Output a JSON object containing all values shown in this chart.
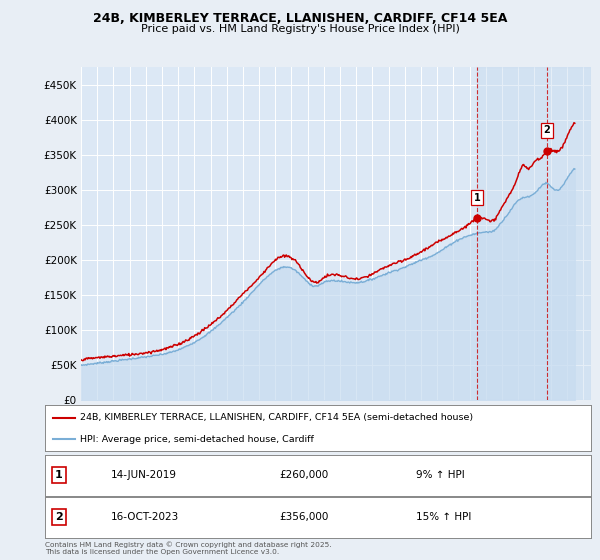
{
  "title_line1": "24B, KIMBERLEY TERRACE, LLANISHEN, CARDIFF, CF14 5EA",
  "title_line2": "Price paid vs. HM Land Registry's House Price Index (HPI)",
  "bg_color": "#e8eef5",
  "plot_bg_color": "#dce8f5",
  "grid_color": "#ffffff",
  "red_color": "#cc0000",
  "blue_color": "#7aaed6",
  "shade_color": "#c8dcf0",
  "marker1_date": "14-JUN-2019",
  "marker1_price": 260000,
  "marker1_hpi": "9% ↑ HPI",
  "marker2_date": "16-OCT-2023",
  "marker2_price": 356000,
  "marker2_hpi": "15% ↑ HPI",
  "legend_label1": "24B, KIMBERLEY TERRACE, LLANISHEN, CARDIFF, CF14 5EA (semi-detached house)",
  "legend_label2": "HPI: Average price, semi-detached house, Cardiff",
  "footer": "Contains HM Land Registry data © Crown copyright and database right 2025.\nThis data is licensed under the Open Government Licence v3.0.",
  "ylim": [
    0,
    475000
  ],
  "yticks": [
    0,
    50000,
    100000,
    150000,
    200000,
    250000,
    300000,
    350000,
    400000,
    450000
  ],
  "xlim_start": 1995.0,
  "xlim_end": 2026.5,
  "marker1_x": 2019.45,
  "marker2_x": 2023.79,
  "marker1_label": "1",
  "marker2_label": "2"
}
